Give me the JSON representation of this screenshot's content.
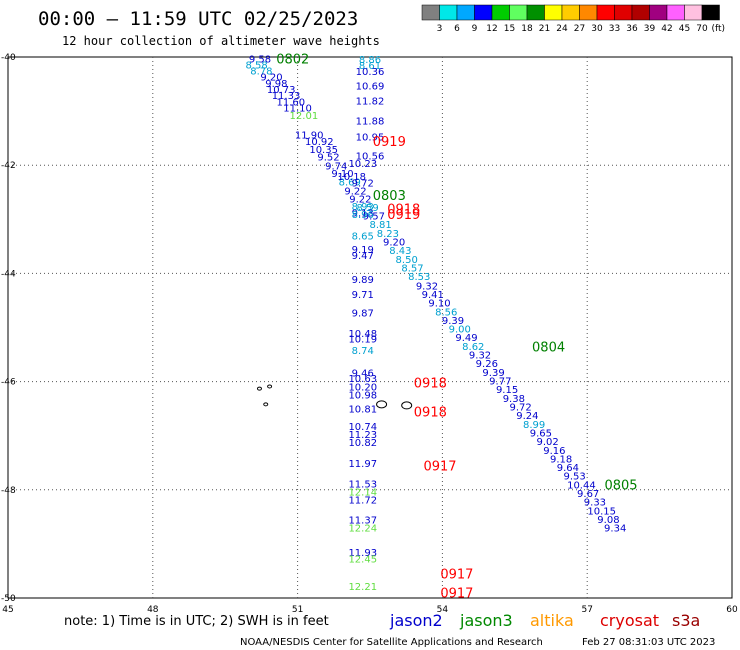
{
  "header": {
    "title": "00:00 — 11:59 UTC 02/25/2023",
    "subtitle": "12 hour collection of altimeter wave heights"
  },
  "legend": {
    "colors": [
      "#808080",
      "#00e8e8",
      "#00a8ff",
      "#0000ff",
      "#00cc00",
      "#60ff60",
      "#009000",
      "#ffff00",
      "#ffcc00",
      "#ff8800",
      "#ff0000",
      "#e00000",
      "#b00000",
      "#a00080",
      "#ff60ff",
      "#ffc0e0",
      "#000000"
    ],
    "ticks": [
      "3",
      "6",
      "9",
      "12",
      "15",
      "18",
      "21",
      "24",
      "27",
      "30",
      "33",
      "36",
      "39",
      "42",
      "45",
      "70"
    ],
    "unit": "(ft)"
  },
  "footer": {
    "note": "note: 1) Time is in UTC; 2) SWH is in feet",
    "satellites": [
      {
        "name": "jason2",
        "color": "#0000cc"
      },
      {
        "name": "jason3",
        "color": "#008800"
      },
      {
        "name": "altika",
        "color": "#ff9900"
      },
      {
        "name": "cryosat",
        "color": "#dd0000"
      },
      {
        "name": "s3a",
        "color": "#990000"
      }
    ],
    "credit": "NOAA/NESDIS Center for Satellite Applications and Research",
    "generated": "Feb 27 08:31:03 UTC 2023"
  },
  "chart_data": {
    "type": "scatter",
    "xlim": [
      45,
      60
    ],
    "ylim": [
      -50,
      -40
    ],
    "x_ticks": [
      "45",
      "48",
      "51",
      "54",
      "57",
      "60"
    ],
    "y_ticks": [
      "-40",
      "-42",
      "-44",
      "-46",
      "-48",
      "-50"
    ],
    "grid": true,
    "colors": {
      "blue": "#0000cc",
      "cyan": "#00a0d0",
      "green": "#60dd40",
      "red": "#ff0000",
      "dgreen": "#008000"
    },
    "land": [
      {
        "lon": 52.74,
        "lat": -46.42
      },
      {
        "lon": 53.26,
        "lat": -46.44
      },
      {
        "lon": 50.21,
        "lat": -46.13
      },
      {
        "lon": 50.42,
        "lat": -46.09
      },
      {
        "lon": 50.34,
        "lat": -46.42
      }
    ],
    "time_labels": [
      {
        "text": "0802",
        "lon": 50.9,
        "lat": -40.03,
        "color": "dgreen"
      },
      {
        "text": "0919",
        "lon": 52.9,
        "lat": -41.55,
        "color": "red"
      },
      {
        "text": "0803",
        "lon": 52.9,
        "lat": -42.55,
        "color": "dgreen"
      },
      {
        "text": "0918",
        "lon": 53.2,
        "lat": -42.8,
        "color": "red"
      },
      {
        "text": "0919",
        "lon": 53.2,
        "lat": -42.9,
        "color": "red"
      },
      {
        "text": "0804",
        "lon": 56.2,
        "lat": -45.35,
        "color": "dgreen"
      },
      {
        "text": "0918",
        "lon": 53.75,
        "lat": -46.02,
        "color": "red"
      },
      {
        "text": "0918",
        "lon": 53.75,
        "lat": -46.55,
        "color": "red"
      },
      {
        "text": "0917",
        "lon": 53.95,
        "lat": -47.55,
        "color": "red"
      },
      {
        "text": "0805",
        "lon": 57.7,
        "lat": -47.9,
        "color": "dgreen"
      },
      {
        "text": "0917",
        "lon": 54.3,
        "lat": -49.55,
        "color": "red"
      },
      {
        "text": "0917",
        "lon": 54.3,
        "lat": -49.9,
        "color": "red"
      }
    ],
    "tracks": [
      {
        "name": "diagonal",
        "points": [
          {
            "lon": 50.22,
            "lat": -40.03,
            "swh": "9.58",
            "color": "blue"
          },
          {
            "lon": 50.15,
            "lat": -40.14,
            "swh": "8.58",
            "color": "cyan"
          },
          {
            "lon": 50.25,
            "lat": -40.25,
            "swh": "8.78",
            "color": "cyan"
          },
          {
            "lon": 50.46,
            "lat": -40.36,
            "swh": "9.20",
            "color": "blue"
          },
          {
            "lon": 50.56,
            "lat": -40.48,
            "swh": "9.98",
            "color": "blue"
          },
          {
            "lon": 50.66,
            "lat": -40.59,
            "swh": "10.73",
            "color": "blue"
          },
          {
            "lon": 50.76,
            "lat": -40.7,
            "swh": "11.33",
            "color": "blue"
          },
          {
            "lon": 50.86,
            "lat": -40.82,
            "swh": "11.60",
            "color": "blue"
          },
          {
            "lon": 51.0,
            "lat": -40.93,
            "swh": "11.10",
            "color": "blue"
          },
          {
            "lon": 51.13,
            "lat": -41.07,
            "swh": "12.01",
            "color": "green"
          },
          {
            "lon": 51.24,
            "lat": -41.43,
            "swh": "11.90",
            "color": "blue"
          },
          {
            "lon": 51.45,
            "lat": -41.55,
            "swh": "10.92",
            "color": "blue"
          },
          {
            "lon": 51.54,
            "lat": -41.7,
            "swh": "10.35",
            "color": "blue"
          },
          {
            "lon": 51.64,
            "lat": -41.84,
            "swh": "9.52",
            "color": "blue"
          },
          {
            "lon": 51.8,
            "lat": -42.01,
            "swh": "9.74",
            "color": "blue"
          },
          {
            "lon": 51.93,
            "lat": -42.14,
            "swh": "9.10",
            "color": "blue"
          },
          {
            "lon": 52.08,
            "lat": -42.3,
            "swh": "8.69",
            "color": "cyan"
          },
          {
            "lon": 52.2,
            "lat": -42.47,
            "swh": "9.22",
            "color": "blue"
          },
          {
            "lon": 52.3,
            "lat": -42.62,
            "swh": "9.22",
            "color": "blue"
          },
          {
            "lon": 52.45,
            "lat": -42.77,
            "swh": "8.59",
            "color": "cyan"
          },
          {
            "lon": 52.58,
            "lat": -42.93,
            "swh": "9.57",
            "color": "blue"
          },
          {
            "lon": 52.72,
            "lat": -43.09,
            "swh": "8.81",
            "color": "cyan"
          },
          {
            "lon": 52.87,
            "lat": -43.25,
            "swh": "8.23",
            "color": "cyan"
          },
          {
            "lon": 53.0,
            "lat": -43.41,
            "swh": "9.20",
            "color": "blue"
          },
          {
            "lon": 53.13,
            "lat": -43.57,
            "swh": "8.43",
            "color": "cyan"
          },
          {
            "lon": 53.26,
            "lat": -43.73,
            "swh": "8.50",
            "color": "cyan"
          },
          {
            "lon": 53.38,
            "lat": -43.89,
            "swh": "8.57",
            "color": "cyan"
          },
          {
            "lon": 53.52,
            "lat": -44.05,
            "swh": "8.53",
            "color": "cyan"
          },
          {
            "lon": 53.68,
            "lat": -44.22,
            "swh": "9.32",
            "color": "blue"
          },
          {
            "lon": 53.8,
            "lat": -44.38,
            "swh": "9.41",
            "color": "blue"
          },
          {
            "lon": 53.94,
            "lat": -44.54,
            "swh": "9.10",
            "color": "blue"
          },
          {
            "lon": 54.08,
            "lat": -44.7,
            "swh": "8.56",
            "color": "cyan"
          },
          {
            "lon": 54.22,
            "lat": -44.86,
            "swh": "9.39",
            "color": "blue"
          },
          {
            "lon": 54.36,
            "lat": -45.02,
            "swh": "9.00",
            "color": "cyan"
          },
          {
            "lon": 54.5,
            "lat": -45.18,
            "swh": "9.49",
            "color": "blue"
          },
          {
            "lon": 54.64,
            "lat": -45.34,
            "swh": "8.62",
            "color": "cyan"
          },
          {
            "lon": 54.78,
            "lat": -45.5,
            "swh": "9.32",
            "color": "blue"
          },
          {
            "lon": 54.92,
            "lat": -45.66,
            "swh": "9.26",
            "color": "blue"
          },
          {
            "lon": 55.06,
            "lat": -45.82,
            "swh": "9.39",
            "color": "blue"
          },
          {
            "lon": 55.2,
            "lat": -45.98,
            "swh": "9.77",
            "color": "blue"
          },
          {
            "lon": 55.34,
            "lat": -46.14,
            "swh": "9.15",
            "color": "blue"
          },
          {
            "lon": 55.48,
            "lat": -46.3,
            "swh": "9.38",
            "color": "blue"
          },
          {
            "lon": 55.62,
            "lat": -46.46,
            "swh": "9.72",
            "color": "blue"
          },
          {
            "lon": 55.76,
            "lat": -46.62,
            "swh": "9.24",
            "color": "blue"
          },
          {
            "lon": 55.9,
            "lat": -46.78,
            "swh": "8.99",
            "color": "cyan"
          },
          {
            "lon": 56.04,
            "lat": -46.94,
            "swh": "9.65",
            "color": "blue"
          },
          {
            "lon": 56.18,
            "lat": -47.1,
            "swh": "9.02",
            "color": "blue"
          },
          {
            "lon": 56.32,
            "lat": -47.26,
            "swh": "9.16",
            "color": "blue"
          },
          {
            "lon": 56.46,
            "lat": -47.42,
            "swh": "9.18",
            "color": "blue"
          },
          {
            "lon": 56.6,
            "lat": -47.58,
            "swh": "9.64",
            "color": "blue"
          },
          {
            "lon": 56.74,
            "lat": -47.74,
            "swh": "9.53",
            "color": "blue"
          },
          {
            "lon": 56.88,
            "lat": -47.9,
            "swh": "10.44",
            "color": "blue"
          },
          {
            "lon": 57.02,
            "lat": -48.06,
            "swh": "9.67",
            "color": "blue"
          },
          {
            "lon": 57.16,
            "lat": -48.22,
            "swh": "9.33",
            "color": "blue"
          },
          {
            "lon": 57.3,
            "lat": -48.38,
            "swh": "10.15",
            "color": "blue"
          },
          {
            "lon": 57.44,
            "lat": -48.54,
            "swh": "9.08",
            "color": "blue"
          },
          {
            "lon": 57.58,
            "lat": -48.7,
            "swh": "9.34",
            "color": "blue"
          }
        ]
      },
      {
        "name": "vertical-1",
        "points": [
          {
            "lon": 52.5,
            "lat": -40.04,
            "swh": "8.86",
            "color": "cyan"
          },
          {
            "lon": 52.5,
            "lat": -40.15,
            "swh": "8.61",
            "color": "cyan"
          },
          {
            "lon": 52.5,
            "lat": -40.26,
            "swh": "10.36",
            "color": "blue"
          },
          {
            "lon": 52.5,
            "lat": -40.53,
            "swh": "10.69",
            "color": "blue"
          },
          {
            "lon": 52.5,
            "lat": -40.8,
            "swh": "11.82",
            "color": "blue"
          },
          {
            "lon": 52.5,
            "lat": -41.17,
            "swh": "11.88",
            "color": "blue"
          },
          {
            "lon": 52.5,
            "lat": -41.47,
            "swh": "10.95",
            "color": "blue"
          },
          {
            "lon": 52.5,
            "lat": -41.82,
            "swh": "10.56",
            "color": "blue"
          },
          {
            "lon": 52.35,
            "lat": -41.96,
            "swh": "10.23",
            "color": "blue"
          },
          {
            "lon": 52.12,
            "lat": -42.2,
            "swh": "10.18",
            "color": "blue"
          },
          {
            "lon": 52.35,
            "lat": -42.75,
            "swh": "8.93",
            "color": "cyan"
          },
          {
            "lon": 52.35,
            "lat": -42.87,
            "swh": "9.13",
            "color": "blue"
          },
          {
            "lon": 52.35,
            "lat": -43.55,
            "swh": "9.19",
            "color": "blue"
          },
          {
            "lon": 52.35,
            "lat": -43.66,
            "swh": "9.47",
            "color": "blue"
          },
          {
            "lon": 52.35,
            "lat": -44.1,
            "swh": "9.89",
            "color": "blue"
          },
          {
            "lon": 52.35,
            "lat": -44.38,
            "swh": "9.71",
            "color": "blue"
          },
          {
            "lon": 52.35,
            "lat": -44.72,
            "swh": "9.87",
            "color": "blue"
          },
          {
            "lon": 52.35,
            "lat": -45.1,
            "swh": "10.48",
            "color": "blue"
          },
          {
            "lon": 52.35,
            "lat": -45.2,
            "swh": "10.19",
            "color": "blue"
          },
          {
            "lon": 52.35,
            "lat": -45.42,
            "swh": "8.74",
            "color": "cyan"
          },
          {
            "lon": 52.35,
            "lat": -42.9,
            "swh": "8.96",
            "color": "cyan"
          },
          {
            "lon": 52.35,
            "lat": -43.3,
            "swh": "8.65",
            "color": "cyan"
          },
          {
            "lon": 52.35,
            "lat": -42.32,
            "swh": "9.72",
            "color": "blue"
          }
        ]
      },
      {
        "name": "vertical-2",
        "points": [
          {
            "lon": 52.35,
            "lat": -45.83,
            "swh": "9.46",
            "color": "blue"
          },
          {
            "lon": 52.35,
            "lat": -45.93,
            "swh": "10.63",
            "color": "blue"
          },
          {
            "lon": 52.35,
            "lat": -46.09,
            "swh": "10.20",
            "color": "blue"
          },
          {
            "lon": 52.35,
            "lat": -46.24,
            "swh": "10.98",
            "color": "blue"
          },
          {
            "lon": 52.35,
            "lat": -46.5,
            "swh": "10.81",
            "color": "blue"
          },
          {
            "lon": 52.35,
            "lat": -46.82,
            "swh": "10.74",
            "color": "blue"
          },
          {
            "lon": 52.35,
            "lat": -46.97,
            "swh": "11.23",
            "color": "blue"
          },
          {
            "lon": 52.35,
            "lat": -47.12,
            "swh": "10.82",
            "color": "blue"
          },
          {
            "lon": 52.35,
            "lat": -47.5,
            "swh": "11.97",
            "color": "blue"
          },
          {
            "lon": 52.35,
            "lat": -47.88,
            "swh": "11.53",
            "color": "blue"
          },
          {
            "lon": 52.35,
            "lat": -48.03,
            "swh": "12.14",
            "color": "green"
          },
          {
            "lon": 52.35,
            "lat": -48.18,
            "swh": "11.72",
            "color": "blue"
          },
          {
            "lon": 52.35,
            "lat": -48.55,
            "swh": "11.37",
            "color": "blue"
          },
          {
            "lon": 52.35,
            "lat": -48.7,
            "swh": "12.24",
            "color": "green"
          },
          {
            "lon": 52.35,
            "lat": -49.15,
            "swh": "11.93",
            "color": "blue"
          },
          {
            "lon": 52.35,
            "lat": -49.27,
            "swh": "12.45",
            "color": "green"
          },
          {
            "lon": 52.35,
            "lat": -49.78,
            "swh": "12.21",
            "color": "green"
          }
        ]
      }
    ]
  }
}
